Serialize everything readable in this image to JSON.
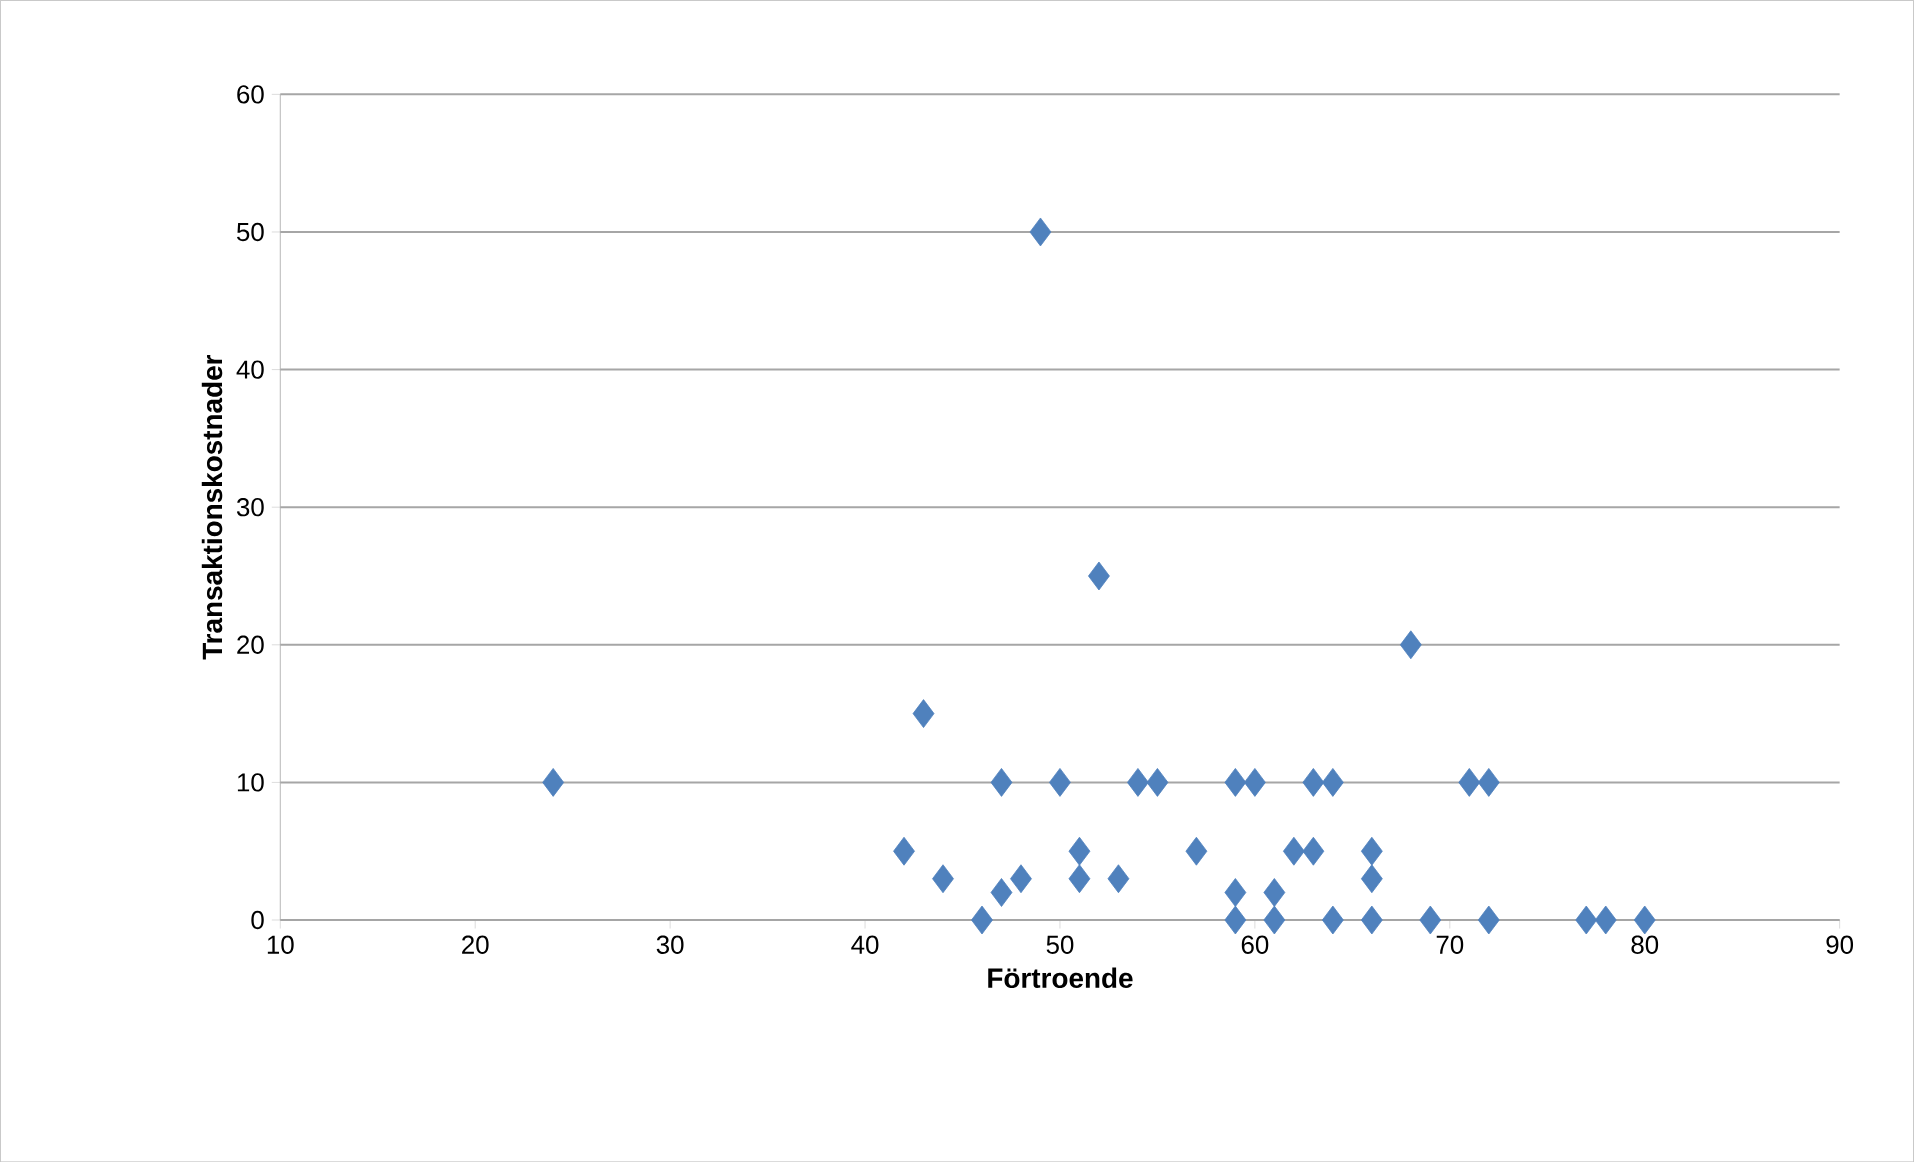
{
  "chart_data": {
    "type": "scatter",
    "xlabel": "Förtroende",
    "ylabel": "Transaktionskostnader",
    "x": [
      24,
      49,
      52,
      68,
      43,
      47,
      50,
      54,
      55,
      59,
      60,
      63,
      64,
      71,
      72,
      42,
      51,
      57,
      62,
      63,
      66,
      44,
      48,
      51,
      53,
      66,
      47,
      59,
      61,
      46,
      59,
      61,
      64,
      66,
      69,
      72,
      77,
      78,
      80
    ],
    "values": [
      10,
      50,
      25,
      20,
      15,
      10,
      10,
      10,
      10,
      10,
      10,
      10,
      10,
      10,
      10,
      5,
      5,
      5,
      5,
      5,
      5,
      3,
      3,
      3,
      3,
      3,
      2,
      2,
      2,
      0,
      0,
      0,
      0,
      0,
      0,
      0,
      0,
      0,
      0
    ],
    "color": "#4f81bd",
    "marker": "diamond",
    "grid": "y",
    "xlim": [
      10,
      90
    ],
    "xticks": [
      10,
      20,
      30,
      40,
      50,
      60,
      70,
      80,
      90
    ],
    "ylim": [
      0,
      60
    ],
    "yticks": [
      0,
      10,
      20,
      30,
      40,
      50,
      60
    ]
  }
}
